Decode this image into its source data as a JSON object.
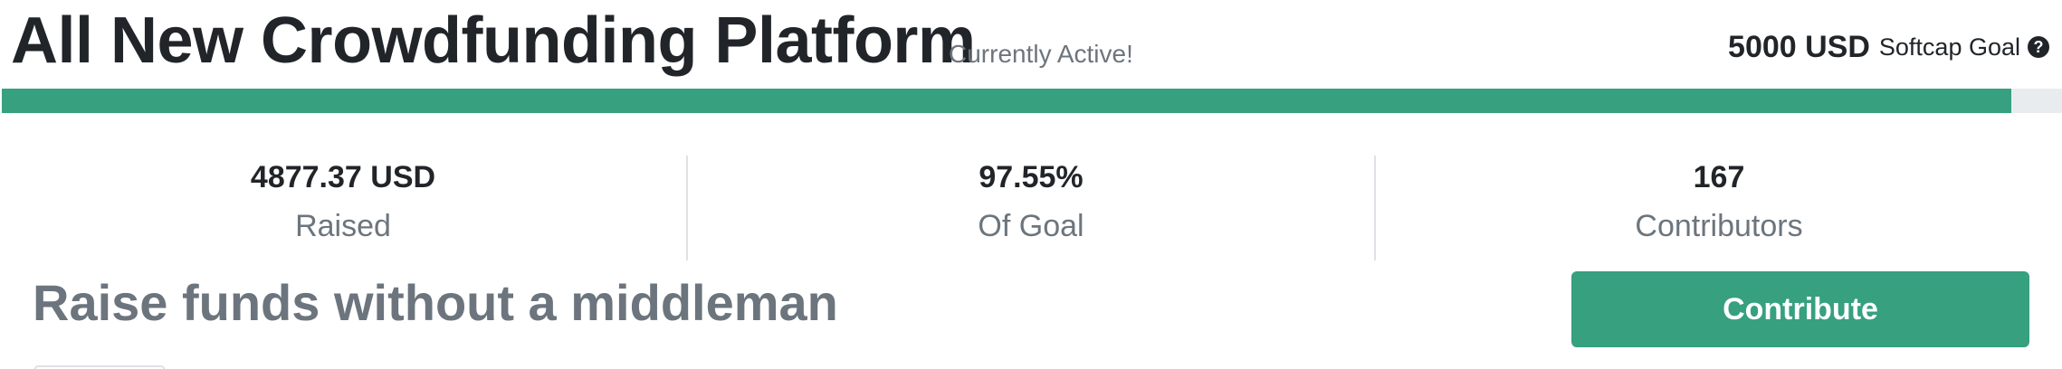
{
  "header": {
    "title": "All New Crowdfunding Platform",
    "status": "Currently Active!",
    "goal_amount": "5000 USD",
    "goal_label": "Softcap Goal",
    "help_icon": "question-circle-icon"
  },
  "progress": {
    "fraction": 0.9755,
    "fill_color": "#36a07f",
    "track_color": "#e9ecef"
  },
  "stats": {
    "raised": {
      "value": "4877.37 USD",
      "label": "Raised"
    },
    "goal_percent": {
      "value": "97.55%",
      "label": "Of Goal"
    },
    "contributors": {
      "value": "167",
      "label": "Contributors"
    }
  },
  "main": {
    "tagline": "Raise funds without a middleman",
    "contribute_label": "Contribute"
  },
  "colors": {
    "accent": "#36a07f",
    "muted_text": "#6c757d",
    "dark_text": "#212529"
  }
}
